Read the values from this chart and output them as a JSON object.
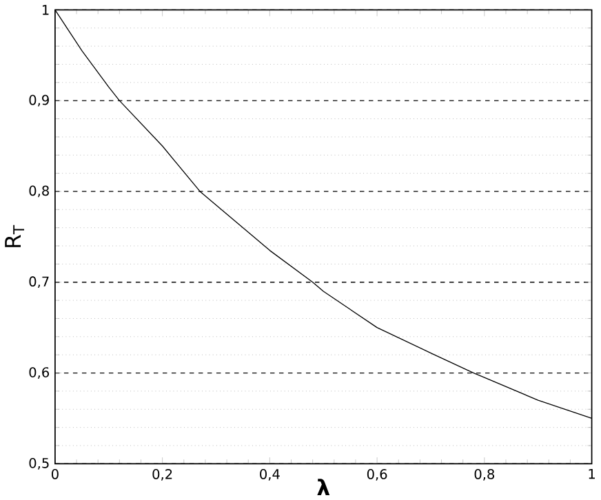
{
  "chart_data": {
    "type": "line",
    "xlabel": "λ",
    "ylabel": "R$_{T}$",
    "x": [
      0,
      0.05,
      0.1,
      0.12,
      0.2,
      0.27,
      0.3,
      0.4,
      0.48,
      0.5,
      0.6,
      0.7,
      0.78,
      0.8,
      0.9,
      1
    ],
    "series": [
      {
        "color": "#000000",
        "values": [
          1,
          0.955,
          0.915,
          0.9,
          0.85,
          0.8,
          0.785,
          0.735,
          0.7,
          0.69,
          0.65,
          0.622,
          0.6,
          0.595,
          0.57,
          0.55
        ]
      }
    ],
    "xlim": [
      0,
      1
    ],
    "ylim": [
      0.5,
      1
    ],
    "xticks": [
      0,
      {
        "value": 0.2,
        "label": "0,2"
      },
      {
        "value": 0.4,
        "label": "0,4"
      },
      {
        "value": 0.6,
        "label": "0,6"
      },
      {
        "value": 0.8,
        "label": "0,8"
      },
      1
    ],
    "yticks": [
      {
        "value": 0.5,
        "label": "0,5"
      },
      {
        "value": 0.6,
        "label": "0,6"
      },
      {
        "value": 0.7,
        "label": "0,7"
      },
      {
        "value": 0.8,
        "label": "0,8"
      },
      {
        "value": 0.9,
        "label": "0,9"
      },
      1
    ],
    "grid": "y",
    "marker": "none",
    "line_style": "solid"
  }
}
